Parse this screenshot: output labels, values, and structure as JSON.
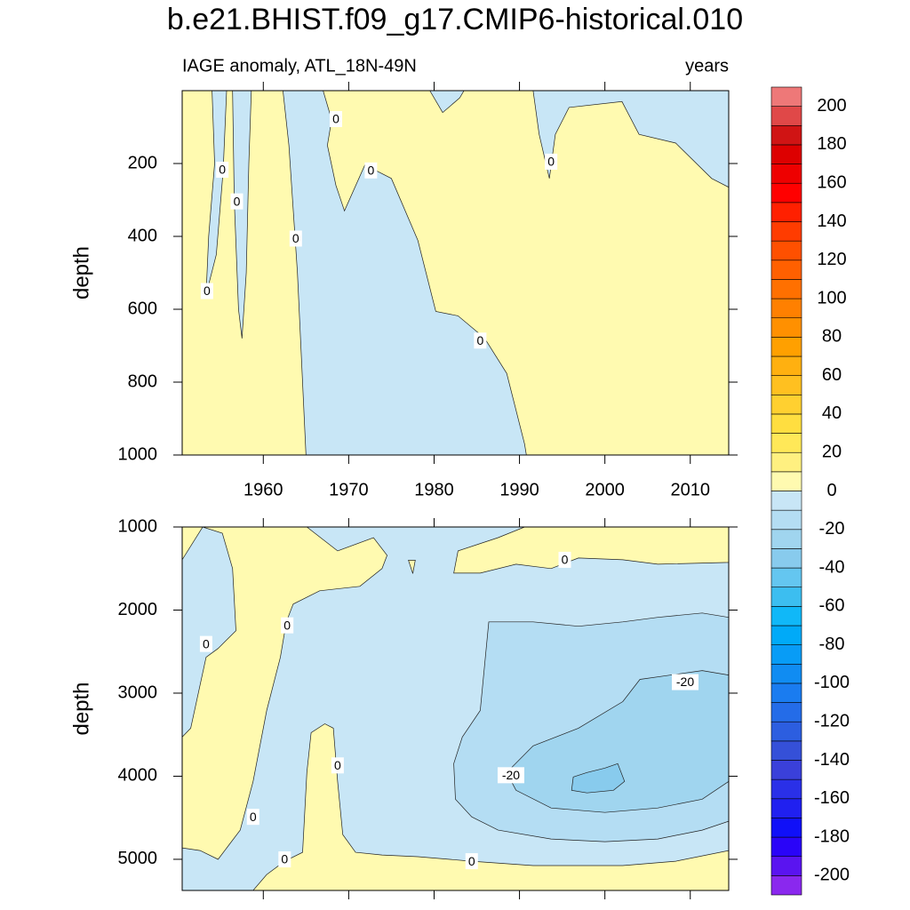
{
  "chart_data": {
    "type": "contour",
    "title": "b.e21.BHIST.f09_g17.CMIP6-historical.010",
    "subtitle_left": "IAGE anomaly, ATL_18N-49N",
    "subtitle_right": "years",
    "xlim": [
      1950.5,
      2014.5
    ],
    "xticks": [
      1960,
      1970,
      1980,
      1990,
      2000,
      2010
    ],
    "colorbar": {
      "levels": [
        -210,
        -200,
        -190,
        -180,
        -170,
        -160,
        -150,
        -140,
        -130,
        -120,
        -110,
        -100,
        -90,
        -80,
        -70,
        -60,
        -50,
        -40,
        -30,
        -20,
        -10,
        0,
        10,
        20,
        30,
        40,
        50,
        60,
        70,
        80,
        90,
        100,
        110,
        120,
        130,
        140,
        150,
        160,
        170,
        180,
        190,
        200,
        210
      ],
      "colors": [
        "#8a28ee",
        "#5a14f0",
        "#2a04f8",
        "#1010f8",
        "#2020f0",
        "#2a30e8",
        "#3a40da",
        "#3550d8",
        "#2c5ee0",
        "#246ce8",
        "#1a7cf0",
        "#108cf2",
        "#089cf6",
        "#00aaf8",
        "#10b8f8",
        "#3cbef0",
        "#64c6f0",
        "#88cbed",
        "#a0d5ef",
        "#b4ddf3",
        "#c8e6f6",
        "#fffab0",
        "#fff080",
        "#ffe858",
        "#ffde40",
        "#ffd030",
        "#ffc020",
        "#ffb010",
        "#ffa000",
        "#ff9000",
        "#ff8000",
        "#ff7000",
        "#ff6000",
        "#ff5000",
        "#ff3c00",
        "#ff2000",
        "#ff0000",
        "#ee0000",
        "#dd0000",
        "#d01414",
        "#e04848",
        "#ee7878",
        "#f8b4b8"
      ],
      "ticks": [
        -200,
        -180,
        -160,
        -140,
        -120,
        -100,
        -80,
        -60,
        -40,
        -20,
        0,
        20,
        40,
        60,
        80,
        100,
        120,
        140,
        160,
        180,
        200
      ]
    },
    "panels": [
      {
        "ylabel": "depth",
        "ylim": [
          0,
          1000
        ],
        "y_reversed": true,
        "yticks": [
          200,
          400,
          600,
          800,
          1000
        ],
        "show_xtick_labels": true,
        "regions": [
          {
            "range": [
              0,
              10
            ],
            "x": [
              1950.5,
              2014.5,
              2014.5,
              1950.5
            ],
            "y": [
              0,
              0,
              1000,
              1000
            ]
          },
          {
            "range": [
              -10,
              0
            ],
            "x": [
              1962.3,
              1963,
              1964,
              1965,
              1990.8,
              1990.6,
              1988.5,
              1985.9,
              1982.8,
              1980.2,
              1978.1,
              1975,
              1971.9,
              1969.5,
              1968.5,
              1967.5,
              1968,
              1967
            ],
            "y": [
              0,
              150,
              500,
              1000,
              1000,
              970,
              776,
              679,
              618,
              606,
              411,
              241,
              204,
              330,
              260,
              150,
              80,
              0
            ]
          },
          {
            "range": [
              -10,
              0
            ],
            "x": [
              1954,
              1954.3,
              1953.6,
              1953.3,
              1954.5,
              1955.3,
              1955.7
            ],
            "y": [
              0,
              200,
              400,
              560,
              450,
              220,
              0
            ]
          },
          {
            "range": [
              -10,
              0
            ],
            "x": [
              1956.4,
              1956.6,
              1957.1,
              1957.5,
              1958,
              1958.3,
              1958.6
            ],
            "y": [
              0,
              300,
              600,
              680,
              500,
              200,
              0
            ]
          },
          {
            "range": [
              -10,
              0
            ],
            "x": [
              1991.6,
              1992.3,
              1993.5,
              1994.2,
              1995.8,
              2002,
              2004,
              2008.3,
              2012.5,
              2014.5,
              2014.5
            ],
            "y": [
              0,
              120,
              241,
              120,
              46,
              30,
              120,
              144,
              241,
              265,
              0
            ]
          },
          {
            "range": [
              -10,
              0
            ],
            "x": [
              1979.5,
              1981,
              1983,
              1983.5
            ],
            "y": [
              0,
              60,
              20,
              0
            ]
          }
        ],
        "contour_labels": [
          {
            "value": 0,
            "x": 1955.2,
            "y": 217
          },
          {
            "value": 0,
            "x": 1956.9,
            "y": 304
          },
          {
            "value": 0,
            "x": 1953.4,
            "y": 550
          },
          {
            "value": 0,
            "x": 1963.8,
            "y": 406
          },
          {
            "value": 0,
            "x": 1968.5,
            "y": 78
          },
          {
            "value": 0,
            "x": 1972.6,
            "y": 219
          },
          {
            "value": 0,
            "x": 1985.4,
            "y": 686
          },
          {
            "value": 0,
            "x": 1993.7,
            "y": 195
          }
        ]
      },
      {
        "ylabel": "depth",
        "ylim": [
          1000,
          5375
        ],
        "y_reversed": true,
        "yticks": [
          1000,
          2000,
          3000,
          4000,
          5000
        ],
        "show_xtick_labels": false,
        "regions": [
          {
            "range": [
              -10,
              0
            ],
            "x": [
              1950.5,
              2014.5,
              2014.5,
              1950.5
            ],
            "y": [
              1000,
              1000,
              5375,
              5375
            ]
          },
          {
            "range": [
              0,
              10
            ],
            "x": [
              1950.5,
              1952.9,
              1950.5
            ],
            "y": [
              1000,
              1000,
              1395
            ]
          },
          {
            "range": [
              0,
              10
            ],
            "x": [
              1952.9,
              1955.2,
              1956.4,
              1956.8,
              1954.7,
              1953.3,
              1951.5,
              1950.5,
              1950.5,
              1952.6,
              1954.7,
              1957.3,
              1958.8,
              1960.4,
              1962.0,
              1962.7,
              1963.5,
              1966.6,
              1971.3,
              1973.9,
              1974.5,
              1972.9,
              1968.7,
              1965.1
            ],
            "y": [
              1000,
              1075,
              1501,
              2248,
              2462,
              2568,
              3422,
              3529,
              4863,
              4895,
              5001,
              4649,
              4062,
              3209,
              2568,
              2142,
              1928,
              1768,
              1715,
              1501,
              1341,
              1128,
              1288,
              1000
            ]
          },
          {
            "range": [
              0,
              10
            ],
            "x": [
              1990.6,
              1987.5,
              1982.8,
              1982.3,
              1985.4,
              1989.6,
              1993.7,
              1996.9,
              2002.1,
              2006.2,
              2014.5,
              2014.5
            ],
            "y": [
              1000,
              1128,
              1288,
              1555,
              1555,
              1448,
              1501,
              1373,
              1395,
              1448,
              1427,
              1000
            ]
          },
          {
            "range": [
              0,
              10
            ],
            "x": [
              1977,
              1977.8,
              1977.5
            ],
            "y": [
              1400,
              1400,
              1560
            ]
          },
          {
            "range": [
              0,
              10
            ],
            "x": [
              1958.8,
              1960.4,
              1962.5,
              1964.6,
              1965.1,
              1965.6,
              1967.2,
              1968.2,
              1968.7,
              1969.3,
              1970.8,
              1973.9,
              1978.1,
              1984.4,
              1991.6,
              2002.1,
              2008.3,
              2014.5,
              2014.5
            ],
            "y": [
              5375,
              5183,
              5023,
              4916,
              3956,
              3475,
              3369,
              3422,
              4062,
              4702,
              4916,
              4948,
              4969,
              5023,
              5076,
              5076,
              5023,
              4895,
              5375
            ]
          },
          {
            "range": [
              -20,
              -10
            ],
            "x": [
              1986.4,
              1985.9,
              1985.4,
              1983.3,
              1982.3,
              1982.5,
              1984.4,
              1987.5,
              1993.7,
              2000.0,
              2006.2,
              2011.4,
              2014.5,
              2014.5,
              2011.4,
              2006.2,
              2002.1,
              1996.9,
              1991.6
            ],
            "y": [
              2142,
              2675,
              3209,
              3529,
              3849,
              4276,
              4489,
              4649,
              4756,
              4788,
              4756,
              4649,
              4542,
              2088,
              2035,
              2088,
              2142,
              2195,
              2142
            ]
          },
          {
            "range": [
              -30,
              -20
            ],
            "x": [
              1989.6,
              1988.5,
              1991.6,
              1996.9,
              2002.1,
              2004.1,
              2011.4,
              2014.5,
              2014.5,
              2011.4,
              2006.2,
              2000.0,
              1993.7
            ],
            "y": [
              4169,
              3956,
              3635,
              3422,
              3102,
              2835,
              2729,
              2782,
              4062,
              4276,
              4382,
              4436,
              4382
            ]
          },
          {
            "range": [
              -40,
              -30
            ],
            "x": [
              1996.3,
              1997.9,
              2000.0,
              2001.5,
              2002.3,
              2001.0,
              1997.9,
              1996.1
            ],
            "y": [
              4009,
              3956,
              3902,
              3849,
              4062,
              4169,
              4201,
              4169
            ]
          }
        ],
        "contour_labels": [
          {
            "value": 0,
            "x": 1953.3,
            "y": 2408
          },
          {
            "value": 0,
            "x": 1962.8,
            "y": 2184
          },
          {
            "value": 0,
            "x": 1968.7,
            "y": 3870
          },
          {
            "value": 0,
            "x": 1958.8,
            "y": 4489
          },
          {
            "value": 0,
            "x": 1962.5,
            "y": 5001
          },
          {
            "value": 0,
            "x": 1984.4,
            "y": 5023
          },
          {
            "value": 0,
            "x": 1995.3,
            "y": 1395
          },
          {
            "value": -20,
            "x": 1989.0,
            "y": 3988
          },
          {
            "value": -20,
            "x": 2009.4,
            "y": 2867
          }
        ]
      }
    ]
  }
}
